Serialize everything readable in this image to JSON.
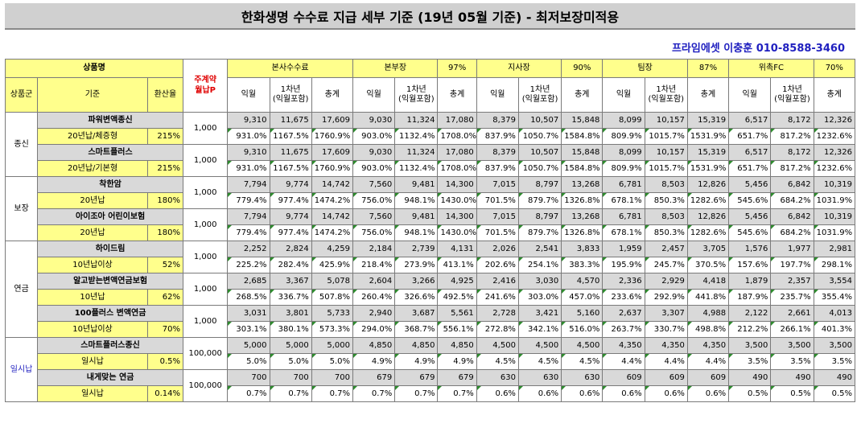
{
  "title": "한화생명 수수료 지급 세부 기준 (19년 05월 기준) - 최저보장미적용",
  "author": "프라임에셋 이충훈 010-8588-3460",
  "header": {
    "product_name": "상품명",
    "main_premium": "주계약\n월납P",
    "hq": "본사수수료",
    "bonbu": "본부장",
    "bonbu_pct": "97%",
    "jisa": "지사장",
    "jisa_pct": "90%",
    "team": "팀장",
    "team_pct": "87%",
    "fc": "위촉FC",
    "fc_pct": "70%",
    "group": "상품군",
    "basis": "기준",
    "rate": "환산율",
    "sub": [
      "익월",
      "1차년\n(익월포함)",
      "총계"
    ]
  },
  "groups": [
    {
      "name": "종신",
      "products": [
        {
          "name": "파워변액종신",
          "basis": "20년납/체증형",
          "rate": "215%",
          "premium": "1,000",
          "values": [
            "9,310",
            "11,675",
            "17,609",
            "9,030",
            "11,324",
            "17,080",
            "8,379",
            "10,507",
            "15,848",
            "8,099",
            "10,157",
            "15,319",
            "6,517",
            "8,172",
            "12,326"
          ],
          "pcts": [
            "931.0%",
            "1167.5%",
            "1760.9%",
            "903.0%",
            "1132.4%",
            "1708.0%",
            "837.9%",
            "1050.7%",
            "1584.8%",
            "809.9%",
            "1015.7%",
            "1531.9%",
            "651.7%",
            "817.2%",
            "1232.6%"
          ]
        },
        {
          "name": "스마트플러스",
          "basis": "20년납/기본형",
          "rate": "215%",
          "premium": "1,000",
          "values": [
            "9,310",
            "11,675",
            "17,609",
            "9,030",
            "11,324",
            "17,080",
            "8,379",
            "10,507",
            "15,848",
            "8,099",
            "10,157",
            "15,319",
            "6,517",
            "8,172",
            "12,326"
          ],
          "pcts": [
            "931.0%",
            "1167.5%",
            "1760.9%",
            "903.0%",
            "1132.4%",
            "1708.0%",
            "837.9%",
            "1050.7%",
            "1584.8%",
            "809.9%",
            "1015.7%",
            "1531.9%",
            "651.7%",
            "817.2%",
            "1232.6%"
          ]
        }
      ]
    },
    {
      "name": "보장",
      "products": [
        {
          "name": "착한암",
          "basis": "20년납",
          "rate": "180%",
          "premium": "1,000",
          "values": [
            "7,794",
            "9,774",
            "14,742",
            "7,560",
            "9,481",
            "14,300",
            "7,015",
            "8,797",
            "13,268",
            "6,781",
            "8,503",
            "12,826",
            "5,456",
            "6,842",
            "10,319"
          ],
          "pcts": [
            "779.4%",
            "977.4%",
            "1474.2%",
            "756.0%",
            "948.1%",
            "1430.0%",
            "701.5%",
            "879.7%",
            "1326.8%",
            "678.1%",
            "850.3%",
            "1282.6%",
            "545.6%",
            "684.2%",
            "1031.9%"
          ]
        },
        {
          "name": "아이조아 어린이보험",
          "basis": "20년납",
          "rate": "180%",
          "premium": "1,000",
          "values": [
            "7,794",
            "9,774",
            "14,742",
            "7,560",
            "9,481",
            "14,300",
            "7,015",
            "8,797",
            "13,268",
            "6,781",
            "8,503",
            "12,826",
            "5,456",
            "6,842",
            "10,319"
          ],
          "pcts": [
            "779.4%",
            "977.4%",
            "1474.2%",
            "756.0%",
            "948.1%",
            "1430.0%",
            "701.5%",
            "879.7%",
            "1326.8%",
            "678.1%",
            "850.3%",
            "1282.6%",
            "545.6%",
            "684.2%",
            "1031.9%"
          ]
        }
      ]
    },
    {
      "name": "연금",
      "products": [
        {
          "name": "하이드림",
          "basis": "10년납이상",
          "rate": "52%",
          "premium": "1,000",
          "values": [
            "2,252",
            "2,824",
            "4,259",
            "2,184",
            "2,739",
            "4,131",
            "2,026",
            "2,541",
            "3,833",
            "1,959",
            "2,457",
            "3,705",
            "1,576",
            "1,977",
            "2,981"
          ],
          "pcts": [
            "225.2%",
            "282.4%",
            "425.9%",
            "218.4%",
            "273.9%",
            "413.1%",
            "202.6%",
            "254.1%",
            "383.3%",
            "195.9%",
            "245.7%",
            "370.5%",
            "157.6%",
            "197.7%",
            "298.1%"
          ]
        },
        {
          "name": "알고받는변액연금보험",
          "basis": "10년납",
          "rate": "62%",
          "premium": "1,000",
          "values": [
            "2,685",
            "3,367",
            "5,078",
            "2,604",
            "3,266",
            "4,925",
            "2,416",
            "3,030",
            "4,570",
            "2,336",
            "2,929",
            "4,418",
            "1,879",
            "2,357",
            "3,554"
          ],
          "pcts": [
            "268.5%",
            "336.7%",
            "507.8%",
            "260.4%",
            "326.6%",
            "492.5%",
            "241.6%",
            "303.0%",
            "457.0%",
            "233.6%",
            "292.9%",
            "441.8%",
            "187.9%",
            "235.7%",
            "355.4%"
          ]
        },
        {
          "name": "100플러스 변액연금",
          "basis": "10년납이상",
          "rate": "70%",
          "premium": "1,000",
          "values": [
            "3,031",
            "3,801",
            "5,733",
            "2,940",
            "3,687",
            "5,561",
            "2,728",
            "3,421",
            "5,160",
            "2,637",
            "3,307",
            "4,988",
            "2,122",
            "2,661",
            "4,013"
          ],
          "pcts": [
            "303.1%",
            "380.1%",
            "573.3%",
            "294.0%",
            "368.7%",
            "556.1%",
            "272.8%",
            "342.1%",
            "516.0%",
            "263.7%",
            "330.7%",
            "498.8%",
            "212.2%",
            "266.1%",
            "401.3%"
          ]
        }
      ]
    },
    {
      "name": "일시납",
      "products": [
        {
          "name": "스마트플러스종신",
          "basis": "일시납",
          "rate": "0.5%",
          "premium": "100,000",
          "values": [
            "5,000",
            "5,000",
            "5,000",
            "4,850",
            "4,850",
            "4,850",
            "4,500",
            "4,500",
            "4,500",
            "4,350",
            "4,350",
            "4,350",
            "3,500",
            "3,500",
            "3,500"
          ],
          "pcts": [
            "5.0%",
            "5.0%",
            "5.0%",
            "4.9%",
            "4.9%",
            "4.9%",
            "4.5%",
            "4.5%",
            "4.5%",
            "4.4%",
            "4.4%",
            "4.4%",
            "3.5%",
            "3.5%",
            "3.5%"
          ]
        },
        {
          "name": "내게맞는 연금",
          "basis": "일시납",
          "rate": "0.14%",
          "premium": "100,000",
          "values": [
            "700",
            "700",
            "700",
            "679",
            "679",
            "679",
            "630",
            "630",
            "630",
            "609",
            "609",
            "609",
            "490",
            "490",
            "490"
          ],
          "pcts": [
            "0.7%",
            "0.7%",
            "0.7%",
            "0.7%",
            "0.7%",
            "0.7%",
            "0.6%",
            "0.6%",
            "0.6%",
            "0.6%",
            "0.6%",
            "0.6%",
            "0.5%",
            "0.5%",
            "0.5%"
          ]
        }
      ]
    }
  ]
}
